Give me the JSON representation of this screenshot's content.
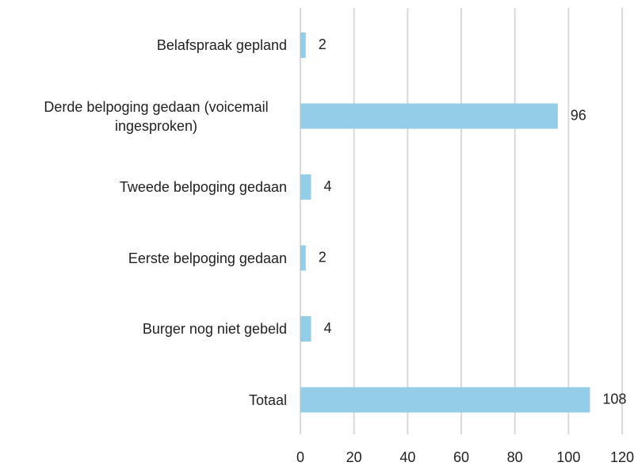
{
  "chart_data": {
    "type": "bar",
    "orientation": "horizontal",
    "categories": [
      "Belafspraak gepland",
      "Derde belpoging gedaan (voicemail ingesproken)",
      "Tweede belpoging gedaan",
      "Eerste belpoging gedaan",
      "Burger nog niet gebeld",
      "Totaal"
    ],
    "values": [
      2,
      96,
      4,
      2,
      4,
      108
    ],
    "color": "#93cde8",
    "xlim": [
      0,
      120
    ],
    "xticks": [
      0,
      20,
      40,
      60,
      80,
      100,
      120
    ],
    "grid": true
  }
}
